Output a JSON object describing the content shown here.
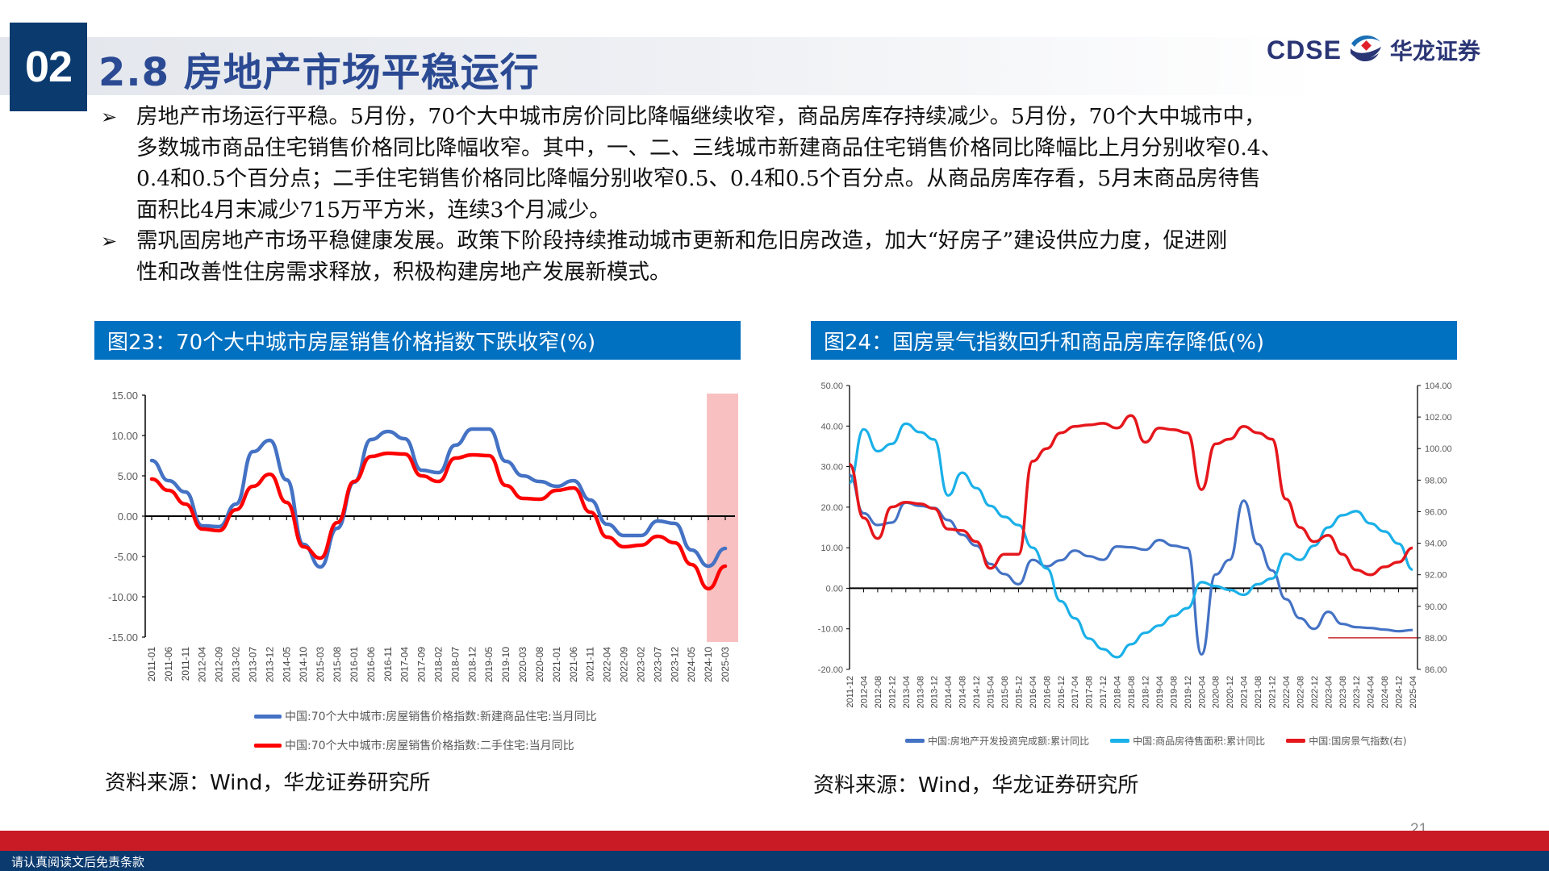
{
  "header": {
    "section_number": "02",
    "title": "2.8 房地产市场平稳运行",
    "logo_text_en": "CDSE",
    "logo_text_cn": "华龙证券",
    "logo_icon": "cdse-wave-logo-icon"
  },
  "bullets": [
    {
      "icon": "arrow-bullet-icon",
      "marker": "➢",
      "lines": [
        "房地产市场运行平稳。5月份，70个大中城市房价同比降幅继续收窄，商品房库存持续减少。5月份，70个大中城市中，",
        "多数城市商品住宅销售价格同比降幅收窄。其中，一、二、三线城市新建商品住宅销售价格同比降幅比上月分别收窄0.4、",
        "0.4和0.5个百分点；二手住宅销售价格同比降幅分别收窄0.5、0.4和0.5个百分点。从商品房库存看，5月末商品房待售",
        "面积比4月末减少715万平方米，连续3个月减少。"
      ]
    },
    {
      "icon": "arrow-bullet-icon",
      "marker": "➢",
      "lines": [
        "需巩固房地产市场平稳健康发展。政策下阶段持续推动城市更新和危旧房改造，加大“好房子”建设供应力度，促进刚",
        "性和改善性住房需求释放，积极构建房地产发展新模式。"
      ]
    }
  ],
  "figures": [
    {
      "title": "图23：70个大中城市房屋销售价格指数下跌收窄(%)",
      "source": "资料来源：Wind，华龙证券研究所"
    },
    {
      "title": "图24：国房景气指数回升和商品房库存降低(%)",
      "source": "资料来源：Wind，华龙证券研究所"
    }
  ],
  "chart_data": [
    {
      "type": "line",
      "title": "图23：70个大中城市房屋销售价格指数下跌收窄(%)",
      "xlabel": "",
      "ylabel": "",
      "ylim": [
        -15,
        15
      ],
      "yticks": [
        "15.00",
        "10.00",
        "5.00",
        "0.00",
        "-5.00",
        "-10.00",
        "-15.00"
      ],
      "grid": false,
      "legend_position": "bottom",
      "x": [
        "2011-01",
        "2011-06",
        "2011-11",
        "2012-04",
        "2012-09",
        "2013-02",
        "2013-07",
        "2013-12",
        "2014-05",
        "2014-10",
        "2015-03",
        "2015-08",
        "2016-01",
        "2016-06",
        "2016-11",
        "2017-04",
        "2017-09",
        "2018-02",
        "2018-07",
        "2018-12",
        "2019-05",
        "2019-10",
        "2020-03",
        "2020-08",
        "2021-01",
        "2021-06",
        "2021-11",
        "2022-04",
        "2022-09",
        "2023-02",
        "2023-07",
        "2023-12",
        "2024-05",
        "2024-10",
        "2025-03"
      ],
      "series": [
        {
          "name": "中国:70个大中城市:房屋销售价格指数:新建商品住宅:当月同比",
          "color": "#4472c4",
          "values": [
            6.9,
            4.4,
            3.0,
            -1.2,
            -1.3,
            1.5,
            8.0,
            9.4,
            4.5,
            -3.5,
            -6.3,
            -1.5,
            4.2,
            9.5,
            10.5,
            9.6,
            5.7,
            5.4,
            8.8,
            10.8,
            10.8,
            6.8,
            5.0,
            4.3,
            3.7,
            4.4,
            2.0,
            -1.0,
            -2.4,
            -2.4,
            -0.6,
            -0.9,
            -4.2,
            -6.2,
            -4.0
          ]
        },
        {
          "name": "中国:70个大中城市:房屋销售价格指数:二手住宅:当月同比",
          "color": "#ff0000",
          "values": [
            4.6,
            3.2,
            1.5,
            -1.6,
            -1.8,
            0.8,
            3.7,
            5.2,
            1.7,
            -3.8,
            -5.2,
            -0.8,
            4.3,
            7.4,
            7.8,
            7.7,
            5.0,
            4.3,
            7.2,
            7.6,
            7.5,
            3.8,
            2.2,
            2.1,
            3.2,
            3.5,
            0.5,
            -2.6,
            -3.8,
            -3.6,
            -2.5,
            -3.3,
            -6.0,
            -9.0,
            -6.2
          ]
        }
      ],
      "highlight": {
        "from": "2024-10",
        "to": "2025-05",
        "color": "#f8c0c0"
      }
    },
    {
      "type": "line",
      "title": "图24：国房景气指数回升和商品房库存降低(%)",
      "xlabel": "",
      "ylabel": "",
      "ylim": [
        -20,
        50
      ],
      "yticks": [
        "50.00",
        "40.00",
        "30.00",
        "20.00",
        "10.00",
        "0.00",
        "-10.00",
        "-20.00"
      ],
      "y2lim": [
        86,
        104
      ],
      "y2ticks": [
        "104.00",
        "102.00",
        "100.00",
        "98.00",
        "96.00",
        "94.00",
        "92.00",
        "90.00",
        "88.00",
        "86.00"
      ],
      "grid": false,
      "legend_position": "bottom",
      "x": [
        "2011-12",
        "2012-04",
        "2012-08",
        "2012-12",
        "2013-04",
        "2013-08",
        "2013-12",
        "2014-04",
        "2014-08",
        "2014-12",
        "2015-04",
        "2015-08",
        "2015-12",
        "2016-04",
        "2016-08",
        "2016-12",
        "2017-04",
        "2017-08",
        "2017-12",
        "2018-04",
        "2018-08",
        "2018-12",
        "2019-04",
        "2019-08",
        "2019-12",
        "2020-04",
        "2020-08",
        "2020-12",
        "2021-04",
        "2021-08",
        "2021-12",
        "2022-04",
        "2022-08",
        "2022-12",
        "2023-04",
        "2023-08",
        "2023-12",
        "2024-04",
        "2024-08",
        "2024-12",
        "2025-04"
      ],
      "series": [
        {
          "name": "中国:房地产开发投资完成额:累计同比",
          "color": "#4472c4",
          "axis": "left",
          "values": [
            27.9,
            18.5,
            15.6,
            16.2,
            21.1,
            20.3,
            19.8,
            16.8,
            13.2,
            10.5,
            6.0,
            3.5,
            1.0,
            7.0,
            5.4,
            6.9,
            9.3,
            7.9,
            7.0,
            10.3,
            10.1,
            9.5,
            11.9,
            10.5,
            9.9,
            -16.3,
            3.4,
            7.0,
            21.6,
            10.9,
            4.4,
            -2.7,
            -7.4,
            -10.0,
            -5.8,
            -8.8,
            -9.6,
            -9.8,
            -10.2,
            -10.6,
            -10.3
          ]
        },
        {
          "name": "中国:商品房待售面积:累计同比",
          "color": "#1ab0e8",
          "axis": "left",
          "values": [
            26.0,
            39.2,
            33.8,
            35.6,
            40.6,
            38.5,
            36.7,
            22.9,
            28.5,
            24.7,
            20.3,
            17.6,
            15.6,
            10.0,
            4.9,
            -3.2,
            -7.4,
            -12.4,
            -15.0,
            -17.0,
            -13.8,
            -11.0,
            -9.2,
            -6.8,
            -4.9,
            1.5,
            0.5,
            -0.4,
            -1.6,
            1.0,
            2.4,
            8.5,
            7.0,
            10.5,
            15.0,
            18.0,
            19.0,
            16.0,
            14.0,
            11.0,
            4.6
          ]
        },
        {
          "name": "中国:国房景气指数(右)",
          "color": "#e5171c",
          "axis": "right",
          "values": [
            99.0,
            95.6,
            94.3,
            96.3,
            96.6,
            96.5,
            96.2,
            94.9,
            94.8,
            94.1,
            92.4,
            93.3,
            93.3,
            99.2,
            100.0,
            101.0,
            101.4,
            101.5,
            101.6,
            101.3,
            102.1,
            100.4,
            101.3,
            101.2,
            101.0,
            97.4,
            100.3,
            100.6,
            101.4,
            101.0,
            100.6,
            96.8,
            95.0,
            94.1,
            94.5,
            93.3,
            92.3,
            92.0,
            92.5,
            92.8,
            93.7
          ]
        }
      ]
    }
  ],
  "footer": {
    "disclaimer": "请认真阅读文后免责条款",
    "page_number": "21"
  },
  "colors": {
    "navy": "#0b3a6f",
    "title_blue": "#2b4a93",
    "fig_header_blue": "#0070c0",
    "footer_red": "#c91b26"
  }
}
